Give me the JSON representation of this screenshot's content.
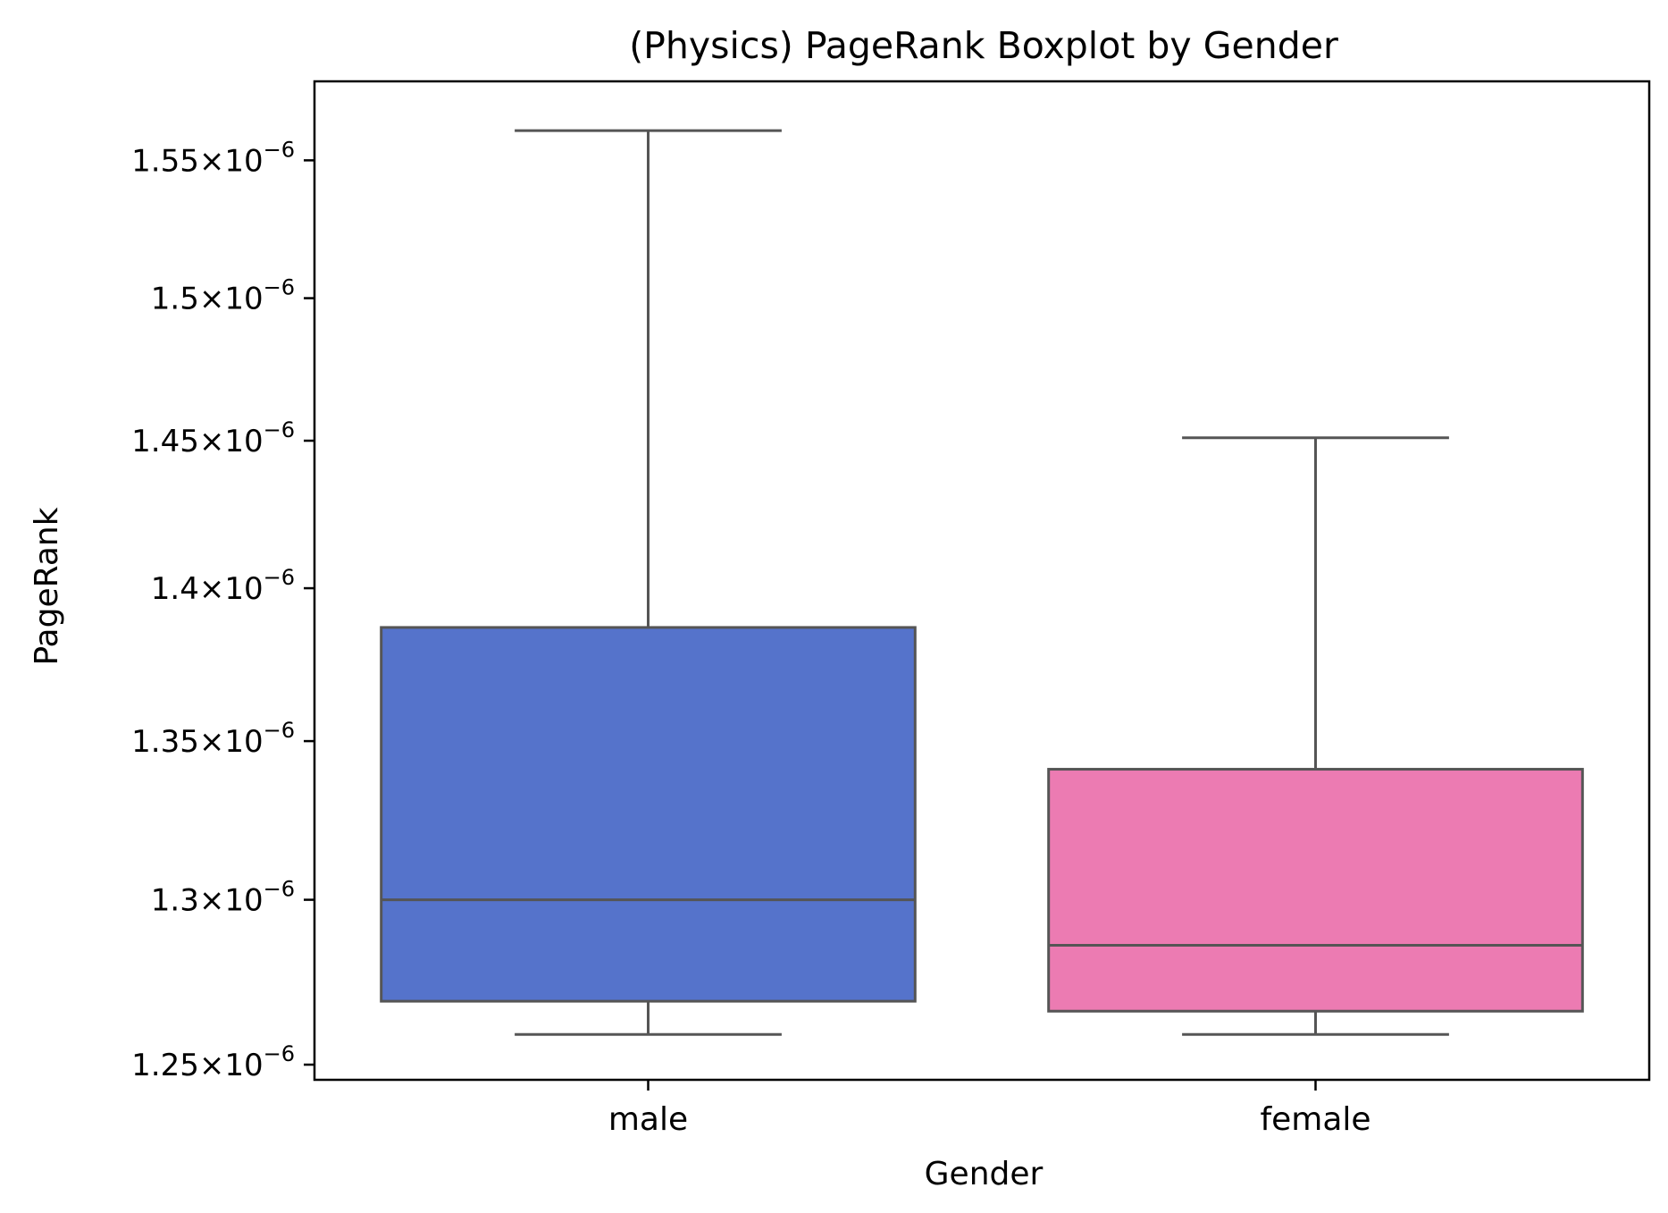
{
  "chart_data": {
    "type": "box",
    "title": "(Physics) PageRank Boxplot by Gender",
    "xlabel": "Gender",
    "ylabel": "PageRank",
    "y_scale": "log",
    "ylim": [
      1.2455e-06,
      1.5794e-06
    ],
    "y_ticks": [
      {
        "value": 1.25e-06,
        "mantissa": "1.25"
      },
      {
        "value": 1.3e-06,
        "mantissa": "1.3"
      },
      {
        "value": 1.35e-06,
        "mantissa": "1.35"
      },
      {
        "value": 1.4e-06,
        "mantissa": "1.4"
      },
      {
        "value": 1.45e-06,
        "mantissa": "1.45"
      },
      {
        "value": 1.5e-06,
        "mantissa": "1.5"
      },
      {
        "value": 1.55e-06,
        "mantissa": "1.55"
      }
    ],
    "tick_suffix": "×10",
    "tick_exponent": "−6",
    "categories": [
      "male",
      "female"
    ],
    "boxes": [
      {
        "category": "male",
        "whisker_low": 1.259e-06,
        "q1": 1.269e-06,
        "median": 1.3e-06,
        "q3": 1.387e-06,
        "whisker_high": 1.561e-06,
        "color": "#5573CB"
      },
      {
        "category": "female",
        "whisker_low": 1.259e-06,
        "q1": 1.266e-06,
        "median": 1.286e-06,
        "q3": 1.341e-06,
        "whisker_high": 1.451e-06,
        "color": "#EC7BB2"
      }
    ],
    "line_color": "#555555",
    "legend": "none",
    "grid": false
  }
}
